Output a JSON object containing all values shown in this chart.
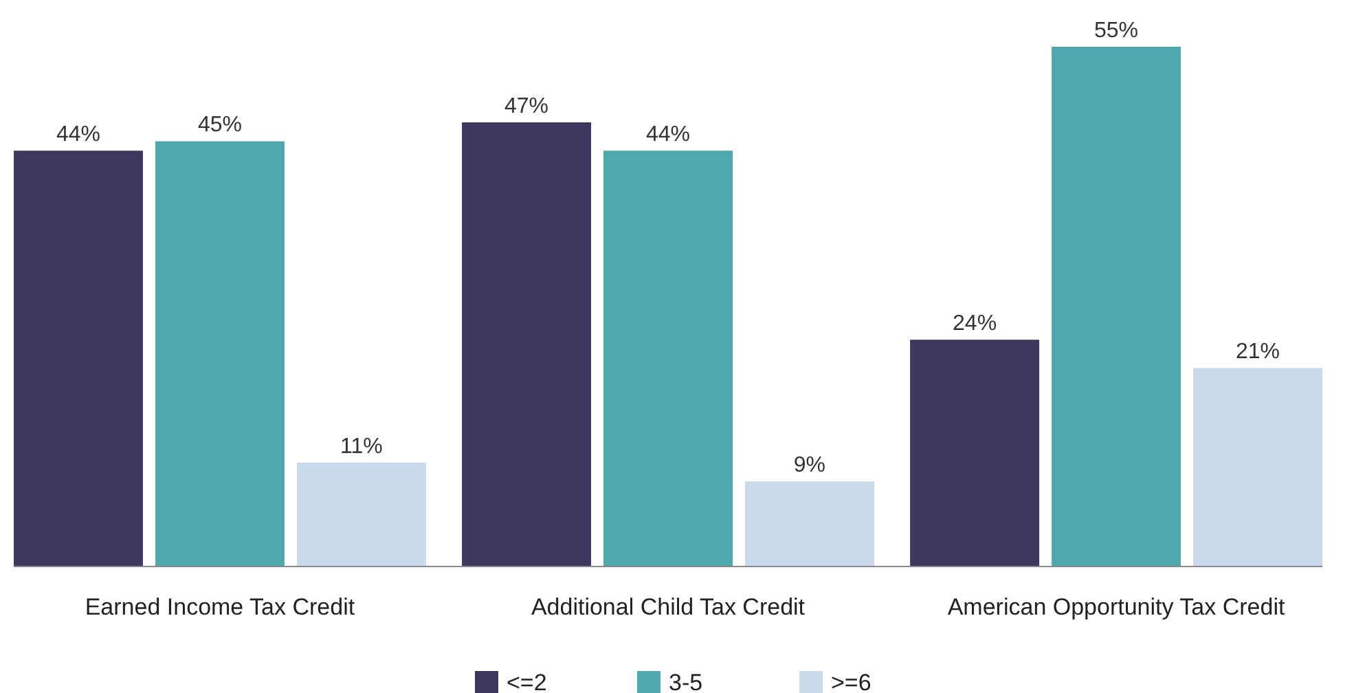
{
  "chart_data": {
    "type": "bar",
    "categories": [
      "Earned Income Tax Credit",
      "Additional Child Tax Credit",
      "American Opportunity Tax Credit"
    ],
    "series": [
      {
        "name": "<=2",
        "color": "#3d3860",
        "values": [
          44,
          47,
          24
        ],
        "value_labels": [
          "44%",
          "47%",
          "24%"
        ]
      },
      {
        "name": "3-5",
        "color": "#4fa8ad",
        "values": [
          45,
          44,
          55
        ],
        "value_labels": [
          "45%",
          "44%",
          "55%"
        ]
      },
      {
        "name": ">=6",
        "color": "#cbd9ec",
        "values": [
          11,
          9,
          21
        ],
        "value_labels": [
          "11%",
          "9%",
          "21%"
        ]
      }
    ],
    "legend": "bottom",
    "grid": false
  }
}
